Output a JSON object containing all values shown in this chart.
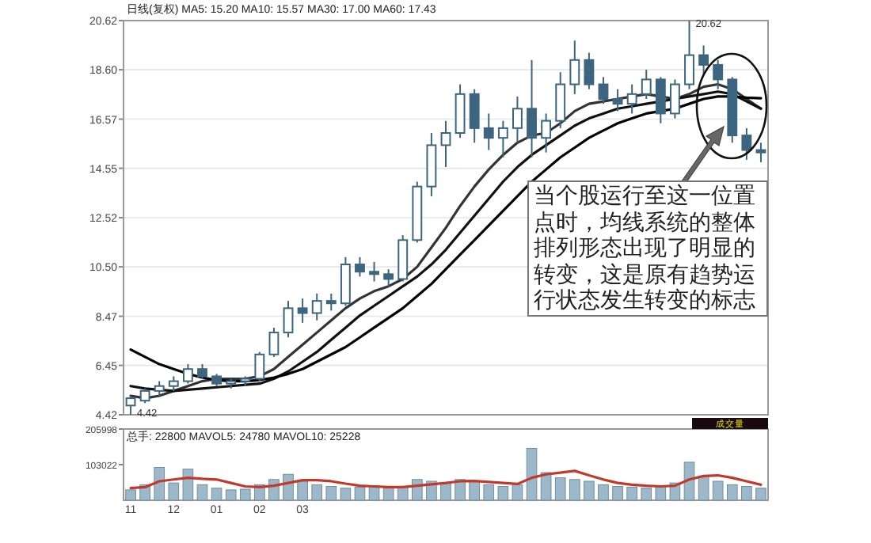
{
  "chart_data": [
    {
      "type": "candlestick",
      "title": "日线(复权) MA5: 15.20 MA10: 15.57 MA30: 17.00 MA60: 17.43",
      "color": "#3d6580",
      "tick_labels": "y",
      "grid": "y",
      "categories": [
        null,
        null,
        null,
        null,
        null,
        null,
        null,
        null,
        null,
        null,
        null,
        null,
        null,
        null,
        null,
        null,
        null,
        null,
        null,
        null,
        null,
        null,
        null,
        null,
        null,
        null,
        null,
        null,
        null,
        null,
        null,
        null,
        null,
        null,
        null,
        null,
        null,
        null,
        null,
        null,
        null,
        null,
        null,
        null,
        null
      ],
      "ylim": [
        4.42,
        20.62
      ],
      "yticks": [
        4.42,
        6.45,
        8.47,
        {
          "value": 10.5,
          "label": "10.50"
        },
        12.52,
        14.55,
        16.57,
        {
          "value": 18.6,
          "label": "18.60"
        },
        20.62
      ],
      "ohlc": [
        [
          4.8,
          5.2,
          4.42,
          5.1
        ],
        [
          5.0,
          5.5,
          4.9,
          5.4
        ],
        [
          5.4,
          5.8,
          5.2,
          5.6
        ],
        [
          5.6,
          6.0,
          5.4,
          5.8
        ],
        [
          5.8,
          6.5,
          5.7,
          6.3
        ],
        [
          6.3,
          6.5,
          5.9,
          6.0
        ],
        [
          6.0,
          6.1,
          5.6,
          5.7
        ],
        [
          5.7,
          5.9,
          5.5,
          5.8
        ],
        [
          5.8,
          6.0,
          5.6,
          5.9
        ],
        [
          5.9,
          7.0,
          5.8,
          6.9
        ],
        [
          6.9,
          8.0,
          6.8,
          7.8
        ],
        [
          7.8,
          9.1,
          7.6,
          8.8
        ],
        [
          8.8,
          9.2,
          8.2,
          8.6
        ],
        [
          8.6,
          9.4,
          8.3,
          9.1
        ],
        [
          9.1,
          9.4,
          8.7,
          9.0
        ],
        [
          9.0,
          10.9,
          8.9,
          10.6
        ],
        [
          10.6,
          10.9,
          10.1,
          10.3
        ],
        [
          10.3,
          10.7,
          9.9,
          10.2
        ],
        [
          10.2,
          10.4,
          9.7,
          10.0
        ],
        [
          10.0,
          11.8,
          9.9,
          11.6
        ],
        [
          11.6,
          14.0,
          11.5,
          13.8
        ],
        [
          13.8,
          16.0,
          13.4,
          15.5
        ],
        [
          15.5,
          16.5,
          14.6,
          16.0
        ],
        [
          16.0,
          18.0,
          15.8,
          17.6
        ],
        [
          17.6,
          17.8,
          15.6,
          16.2
        ],
        [
          16.2,
          16.8,
          15.3,
          15.8
        ],
        [
          15.8,
          16.5,
          15.0,
          16.2
        ],
        [
          16.2,
          17.5,
          15.6,
          17.0
        ],
        [
          17.0,
          19.0,
          15.0,
          15.8
        ],
        [
          15.8,
          16.8,
          15.2,
          16.5
        ],
        [
          16.5,
          18.5,
          16.2,
          18.0
        ],
        [
          18.0,
          19.8,
          17.6,
          19.0
        ],
        [
          19.0,
          19.3,
          17.8,
          18.0
        ],
        [
          18.0,
          18.3,
          17.2,
          17.4
        ],
        [
          17.4,
          17.8,
          16.9,
          17.2
        ],
        [
          17.2,
          18.0,
          16.8,
          17.6
        ],
        [
          17.6,
          18.6,
          17.4,
          18.2
        ],
        [
          18.2,
          18.3,
          16.4,
          16.8
        ],
        [
          16.8,
          18.2,
          16.6,
          18.0
        ],
        [
          18.0,
          20.62,
          17.8,
          19.2
        ],
        [
          19.2,
          19.6,
          18.4,
          18.8
        ],
        [
          18.8,
          19.0,
          17.8,
          18.2
        ],
        [
          18.2,
          18.3,
          15.6,
          15.9
        ],
        [
          15.9,
          16.2,
          14.9,
          15.3
        ],
        [
          15.3,
          15.6,
          14.8,
          15.2
        ]
      ],
      "series": [
        {
          "type": "line",
          "color": "#333333",
          "values": [
            5.2,
            5.1,
            5.2,
            5.4,
            5.6,
            5.8,
            5.9,
            5.9,
            5.9,
            6.0,
            6.3,
            6.8,
            7.3,
            7.8,
            8.3,
            8.8,
            9.2,
            9.5,
            9.7,
            10.0,
            10.5,
            11.3,
            12.1,
            13.0,
            13.8,
            14.5,
            15.1,
            15.6,
            15.9,
            16.0,
            16.4,
            16.9,
            17.2,
            17.3,
            17.4,
            17.5,
            17.6,
            17.5,
            17.4,
            17.6,
            17.9,
            18.0,
            17.8,
            17.4,
            17.0
          ]
        },
        {
          "type": "line",
          "color": "#111111",
          "values": [
            5.6,
            5.5,
            5.45,
            5.4,
            5.45,
            5.5,
            5.55,
            5.6,
            5.65,
            5.7,
            5.9,
            6.2,
            6.6,
            7.0,
            7.5,
            8.0,
            8.5,
            8.9,
            9.3,
            9.7,
            10.1,
            10.6,
            11.2,
            11.9,
            12.6,
            13.3,
            14.0,
            14.6,
            15.1,
            15.5,
            15.9,
            16.3,
            16.6,
            16.8,
            17.0,
            17.1,
            17.2,
            17.3,
            17.4,
            17.5,
            17.6,
            17.7,
            17.6,
            17.3,
            17.0
          ]
        },
        {
          "type": "line",
          "color": "#000000",
          "values": [
            7.1,
            6.8,
            6.5,
            6.3,
            6.1,
            5.95,
            5.85,
            5.8,
            5.8,
            5.85,
            5.95,
            6.1,
            6.3,
            6.6,
            6.9,
            7.2,
            7.6,
            8.0,
            8.4,
            8.8,
            9.3,
            9.8,
            10.4,
            11.0,
            11.6,
            12.2,
            12.8,
            13.4,
            14.0,
            14.5,
            15.0,
            15.4,
            15.8,
            16.1,
            16.4,
            16.6,
            16.8,
            16.9,
            17.0,
            17.2,
            17.4,
            17.5,
            17.5,
            17.45,
            17.43
          ]
        }
      ],
      "annotations": [
        "20.62",
        "4.42",
        "当个股运行至这一位置点时，均线系统的整体排列形态出现了明显的转变，这是原有趋势运行状态发生转变的标志"
      ]
    },
    {
      "type": "bar",
      "title": "总手: 22800 MAVOL5: 24780 MAVOL10: 25228",
      "color": "#9db8c8",
      "categories": [
        "11",
        null,
        null,
        "12",
        null,
        null,
        "01",
        null,
        null,
        "02",
        null,
        null,
        "03",
        null,
        null,
        null,
        null,
        null,
        null,
        null,
        null,
        null,
        null,
        null,
        null,
        null,
        null,
        null,
        null,
        null,
        null,
        null,
        null,
        null,
        null,
        null,
        null,
        null,
        null,
        null,
        null,
        null,
        null,
        null,
        null
      ],
      "ylim": [
        0,
        205998
      ],
      "yticks": [
        103022,
        205998
      ],
      "values": [
        30000,
        45000,
        95000,
        50000,
        90000,
        45000,
        35000,
        30000,
        32000,
        45000,
        60000,
        75000,
        55000,
        45000,
        40000,
        35000,
        38000,
        42000,
        35000,
        40000,
        60000,
        55000,
        50000,
        60000,
        55000,
        45000,
        40000,
        45000,
        150000,
        80000,
        65000,
        60000,
        55000,
        45000,
        40000,
        38000,
        35000,
        42000,
        50000,
        110000,
        70000,
        55000,
        45000,
        40000,
        35000
      ],
      "series": [
        {
          "type": "line",
          "color": "#c0392b",
          "values": [
            35000,
            38000,
            55000,
            60000,
            65000,
            62000,
            60000,
            50000,
            40000,
            38000,
            42000,
            50000,
            58000,
            58000,
            55000,
            48000,
            42000,
            40000,
            38000,
            38000,
            42000,
            46000,
            50000,
            55000,
            56000,
            53000,
            50000,
            47000,
            65000,
            75000,
            80000,
            85000,
            72000,
            60000,
            50000,
            45000,
            42000,
            40000,
            42000,
            60000,
            70000,
            72000,
            65000,
            55000,
            45000
          ]
        }
      ],
      "annotations": [
        "成交量"
      ]
    }
  ]
}
